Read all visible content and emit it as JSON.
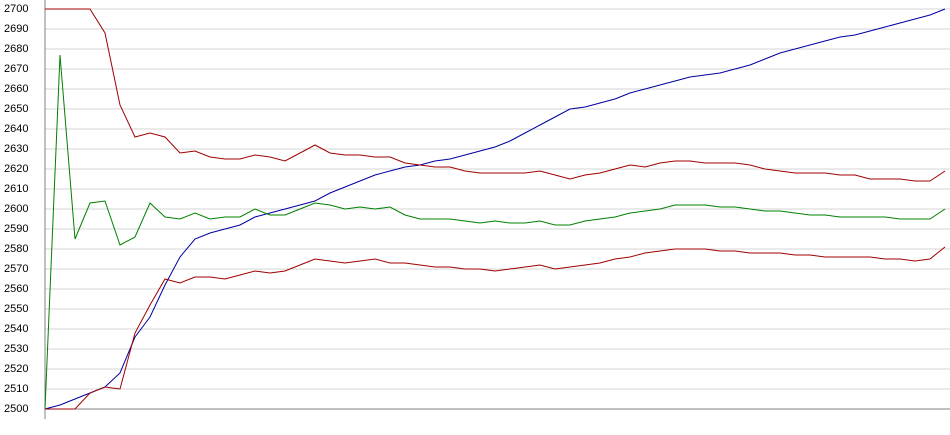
{
  "chart_data": {
    "type": "line",
    "categories": [
      null,
      null,
      null,
      null,
      null,
      null,
      null,
      null,
      null,
      null,
      null,
      null,
      null,
      null,
      null,
      null,
      null,
      null,
      null,
      null,
      null,
      null,
      null,
      null,
      null,
      null,
      null,
      null,
      null,
      null,
      null,
      null,
      null,
      null,
      null,
      null,
      null,
      null,
      null,
      null,
      null,
      null,
      null,
      null,
      null,
      null,
      null,
      null,
      null,
      null,
      null,
      null,
      null,
      null,
      null,
      null,
      null,
      null,
      null,
      null,
      null
    ],
    "series": [
      {
        "color": "#0000a0",
        "values": [
          2500,
          2502,
          2505,
          2508,
          2511,
          2518,
          2536,
          2546,
          2562,
          2576,
          2585,
          2588,
          2590,
          2592,
          2596,
          2598,
          2600,
          2602,
          2604,
          2608,
          2611,
          2614,
          2617,
          2619,
          2621,
          2622,
          2624,
          2625,
          2627,
          2629,
          2631,
          2634,
          2638,
          2642,
          2646,
          2650,
          2651,
          2653,
          2655,
          2658,
          2660,
          2662,
          2664,
          2666,
          2667,
          2668,
          2670,
          2672,
          2675,
          2678,
          2680,
          2682,
          2684,
          2686,
          2687,
          2689,
          2691,
          2693,
          2695,
          2697,
          2700
        ]
      },
      {
        "color": "#a00000",
        "values": [
          2700,
          2700,
          2700,
          2700,
          2688,
          2652,
          2636,
          2638,
          2636,
          2628,
          2629,
          2626,
          2625,
          2625,
          2627,
          2626,
          2624,
          2628,
          2632,
          2628,
          2627,
          2627,
          2626,
          2626,
          2623,
          2622,
          2621,
          2621,
          2619,
          2618,
          2618,
          2618,
          2618,
          2619,
          2617,
          2615,
          2617,
          2618,
          2620,
          2622,
          2621,
          2623,
          2624,
          2624,
          2623,
          2623,
          2623,
          2622,
          2620,
          2619,
          2618,
          2618,
          2618,
          2617,
          2617,
          2615,
          2615,
          2615,
          2614,
          2614,
          2619
        ]
      },
      {
        "color": "#008000",
        "values": [
          2500,
          2677,
          2585,
          2603,
          2604,
          2582,
          2586,
          2603,
          2596,
          2595,
          2598,
          2595,
          2596,
          2596,
          2600,
          2597,
          2597,
          2600,
          2603,
          2602,
          2600,
          2601,
          2600,
          2601,
          2597,
          2595,
          2595,
          2595,
          2594,
          2593,
          2594,
          2593,
          2593,
          2594,
          2592,
          2592,
          2594,
          2595,
          2596,
          2598,
          2599,
          2600,
          2602,
          2602,
          2602,
          2601,
          2601,
          2600,
          2599,
          2599,
          2598,
          2597,
          2597,
          2596,
          2596,
          2596,
          2596,
          2595,
          2595,
          2595,
          2600
        ]
      },
      {
        "color": "#a00000",
        "values": [
          2500,
          2500,
          2500,
          2508,
          2511,
          2510,
          2538,
          2552,
          2565,
          2563,
          2566,
          2566,
          2565,
          2567,
          2569,
          2568,
          2569,
          2572,
          2575,
          2574,
          2573,
          2574,
          2575,
          2573,
          2573,
          2572,
          2571,
          2571,
          2570,
          2570,
          2569,
          2570,
          2571,
          2572,
          2570,
          2571,
          2572,
          2573,
          2575,
          2576,
          2578,
          2579,
          2580,
          2580,
          2580,
          2579,
          2579,
          2578,
          2578,
          2578,
          2577,
          2577,
          2576,
          2576,
          2576,
          2576,
          2575,
          2575,
          2574,
          2575,
          2581
        ]
      }
    ],
    "ylim": [
      2500,
      2700
    ],
    "yticks": [
      2500,
      2510,
      2520,
      2530,
      2540,
      2550,
      2560,
      2570,
      2580,
      2590,
      2600,
      2610,
      2620,
      2630,
      2640,
      2650,
      2660,
      2670,
      2680,
      2690,
      2700
    ],
    "grid": true
  }
}
